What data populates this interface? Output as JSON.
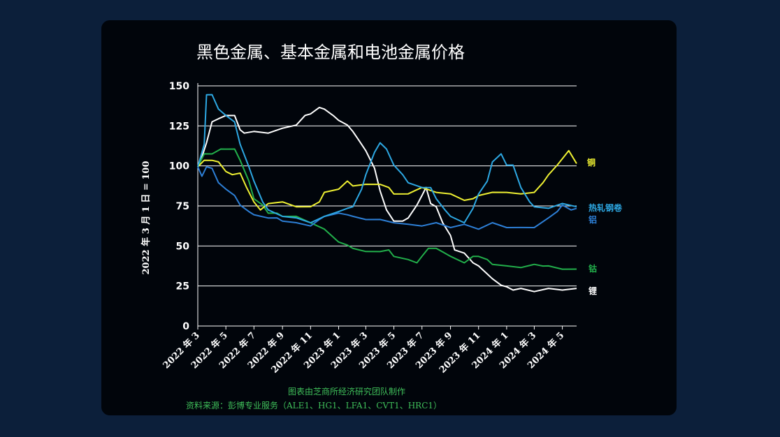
{
  "chart_data": {
    "type": "line",
    "title": "黑色金属、基本金属和电池金属价格",
    "ylabel": "2022 年 3 月 1 日 = 100",
    "ylim": [
      0,
      150
    ],
    "yticks": [
      0,
      25,
      50,
      75,
      100,
      125,
      150
    ],
    "x_range": [
      "2022-03",
      "2024-06"
    ],
    "xtick_labels": [
      "2022 年 3",
      "2022 年 5",
      "2022 年 7",
      "2022 年 9",
      "2022 年 11",
      "2023 年 1",
      "2023 年 3",
      "2023 年 5",
      "2023 年 7",
      "2023 年 9",
      "2023 年 11",
      "2024 年 1",
      "2024 年 3",
      "2024 年 5"
    ],
    "grid": "horizontal",
    "series": [
      {
        "name": "锂",
        "color": "#ffffff",
        "points": [
          [
            "2022-03",
            100
          ],
          [
            "2022-03-10",
            105
          ],
          [
            "2022-03-20",
            115
          ],
          [
            "2022-04",
            127
          ],
          [
            "2022-04-15",
            130
          ],
          [
            "2022-05",
            131
          ],
          [
            "2022-05-20",
            132
          ],
          [
            "2022-06",
            122
          ],
          [
            "2022-06-10",
            121
          ],
          [
            "2022-07",
            121
          ],
          [
            "2022-08",
            121
          ],
          [
            "2022-09",
            123
          ],
          [
            "2022-10",
            126
          ],
          [
            "2022-10-20",
            131
          ],
          [
            "2022-11",
            133
          ],
          [
            "2022-11-20",
            136
          ],
          [
            "2022-12",
            136
          ],
          [
            "2022-12-20",
            131
          ],
          [
            "2023-01",
            129
          ],
          [
            "2023-01-20",
            125
          ],
          [
            "2023-02",
            122
          ],
          [
            "2023-02-15",
            115
          ],
          [
            "2023-03",
            110
          ],
          [
            "2023-03-20",
            98
          ],
          [
            "2023-04",
            85
          ],
          [
            "2023-04-15",
            72
          ],
          [
            "2023-05",
            66
          ],
          [
            "2023-05-20",
            65
          ],
          [
            "2023-06",
            68
          ],
          [
            "2023-06-20",
            75
          ],
          [
            "2023-07",
            82
          ],
          [
            "2023-07-10",
            86
          ],
          [
            "2023-07-20",
            77
          ],
          [
            "2023-08",
            74
          ],
          [
            "2023-08-15",
            65
          ],
          [
            "2023-09",
            56
          ],
          [
            "2023-09-10",
            48
          ],
          [
            "2023-10",
            45
          ],
          [
            "2023-10-20",
            40
          ],
          [
            "2023-11",
            37
          ],
          [
            "2023-11-20",
            33
          ],
          [
            "2023-12",
            29
          ],
          [
            "2023-12-20",
            26
          ],
          [
            "2024-01",
            24
          ],
          [
            "2024-01-15",
            23
          ],
          [
            "2024-02",
            23
          ],
          [
            "2024-03",
            22
          ],
          [
            "2024-04",
            23
          ],
          [
            "2024-05",
            23
          ],
          [
            "2024-06",
            23
          ]
        ]
      },
      {
        "name": "钴",
        "color": "#22b04b",
        "points": [
          [
            "2022-03",
            100
          ],
          [
            "2022-03-15",
            107
          ],
          [
            "2022-04",
            108
          ],
          [
            "2022-04-20",
            110
          ],
          [
            "2022-05",
            111
          ],
          [
            "2022-05-20",
            110
          ],
          [
            "2022-06",
            104
          ],
          [
            "2022-06-20",
            90
          ],
          [
            "2022-07",
            80
          ],
          [
            "2022-07-20",
            75
          ],
          [
            "2022-08",
            71
          ],
          [
            "2022-08-20",
            70
          ],
          [
            "2022-09",
            69
          ],
          [
            "2022-10",
            68
          ],
          [
            "2022-11",
            65
          ],
          [
            "2022-12",
            60
          ],
          [
            "2023-01",
            53
          ],
          [
            "2023-01-20",
            50
          ],
          [
            "2023-02",
            49
          ],
          [
            "2023-03",
            46
          ],
          [
            "2023-04",
            47
          ],
          [
            "2023-04-20",
            47
          ],
          [
            "2023-05",
            44
          ],
          [
            "2023-06",
            41
          ],
          [
            "2023-06-20",
            40
          ],
          [
            "2023-07",
            43
          ],
          [
            "2023-07-15",
            49
          ],
          [
            "2023-08",
            48
          ],
          [
            "2023-08-20",
            46
          ],
          [
            "2023-09",
            43
          ],
          [
            "2023-10",
            40
          ],
          [
            "2023-10-20",
            43
          ],
          [
            "2023-11",
            44
          ],
          [
            "2023-11-20",
            41
          ],
          [
            "2023-12",
            39
          ],
          [
            "2024-01",
            37
          ],
          [
            "2024-02",
            37
          ],
          [
            "2024-03",
            38
          ],
          [
            "2024-03-20",
            38
          ],
          [
            "2024-04",
            37
          ],
          [
            "2024-05",
            36
          ],
          [
            "2024-06",
            35
          ]
        ]
      },
      {
        "name": "铜",
        "color": "#eef032",
        "points": [
          [
            "2022-03",
            100
          ],
          [
            "2022-03-15",
            103
          ],
          [
            "2022-04",
            104
          ],
          [
            "2022-04-15",
            102
          ],
          [
            "2022-05",
            97
          ],
          [
            "2022-05-15",
            94
          ],
          [
            "2022-06",
            96
          ],
          [
            "2022-06-15",
            86
          ],
          [
            "2022-07",
            78
          ],
          [
            "2022-07-15",
            72
          ],
          [
            "2022-08",
            77
          ],
          [
            "2022-09",
            77
          ],
          [
            "2022-10",
            75
          ],
          [
            "2022-11",
            74
          ],
          [
            "2022-11-20",
            78
          ],
          [
            "2022-12",
            83
          ],
          [
            "2023-01",
            86
          ],
          [
            "2023-01-20",
            90
          ],
          [
            "2023-02",
            88
          ],
          [
            "2023-03",
            88
          ],
          [
            "2023-04",
            89
          ],
          [
            "2023-04-20",
            86
          ],
          [
            "2023-05",
            83
          ],
          [
            "2023-06",
            82
          ],
          [
            "2023-06-15",
            85
          ],
          [
            "2023-07",
            86
          ],
          [
            "2023-08",
            84
          ],
          [
            "2023-09",
            82
          ],
          [
            "2023-10",
            79
          ],
          [
            "2023-10-20",
            79
          ],
          [
            "2023-11",
            82
          ],
          [
            "2023-12",
            83
          ],
          [
            "2024-01",
            84
          ],
          [
            "2024-02",
            82
          ],
          [
            "2024-03",
            84
          ],
          [
            "2024-03-20",
            89
          ],
          [
            "2024-04",
            95
          ],
          [
            "2024-04-20",
            100
          ],
          [
            "2024-05",
            105
          ],
          [
            "2024-05-15",
            109
          ],
          [
            "2024-06",
            102
          ]
        ]
      },
      {
        "name": "铝",
        "color": "#2d7fd6",
        "points": [
          [
            "2022-03",
            100
          ],
          [
            "2022-03-10",
            93
          ],
          [
            "2022-03-20",
            100
          ],
          [
            "2022-04",
            98
          ],
          [
            "2022-04-15",
            90
          ],
          [
            "2022-05",
            85
          ],
          [
            "2022-05-20",
            82
          ],
          [
            "2022-06",
            75
          ],
          [
            "2022-06-20",
            72
          ],
          [
            "2022-07",
            69
          ],
          [
            "2022-08",
            68
          ],
          [
            "2022-08-20",
            67
          ],
          [
            "2022-09",
            66
          ],
          [
            "2022-10",
            64
          ],
          [
            "2022-11",
            63
          ],
          [
            "2022-11-20",
            66
          ],
          [
            "2022-12",
            69
          ],
          [
            "2023-01",
            70
          ],
          [
            "2023-01-20",
            70
          ],
          [
            "2023-02",
            68
          ],
          [
            "2023-03",
            67
          ],
          [
            "2023-04",
            66
          ],
          [
            "2023-05",
            65
          ],
          [
            "2023-06",
            63
          ],
          [
            "2023-07",
            63
          ],
          [
            "2023-08",
            64
          ],
          [
            "2023-09",
            62
          ],
          [
            "2023-10",
            63
          ],
          [
            "2023-11",
            61
          ],
          [
            "2023-12",
            64
          ],
          [
            "2024-01",
            62
          ],
          [
            "2024-02",
            61
          ],
          [
            "2024-03",
            62
          ],
          [
            "2024-04",
            67
          ],
          [
            "2024-04-20",
            72
          ],
          [
            "2024-05",
            75
          ],
          [
            "2024-05-20",
            73
          ],
          [
            "2024-06",
            73
          ]
        ]
      },
      {
        "name": "热轧钢卷",
        "color": "#2da8e3",
        "points": [
          [
            "2022-03",
            100
          ],
          [
            "2022-03-15",
            113
          ],
          [
            "2022-03-20",
            145
          ],
          [
            "2022-04",
            144
          ],
          [
            "2022-04-15",
            136
          ],
          [
            "2022-05",
            131
          ],
          [
            "2022-05-20",
            128
          ],
          [
            "2022-06",
            113
          ],
          [
            "2022-06-20",
            100
          ],
          [
            "2022-07",
            90
          ],
          [
            "2022-07-20",
            78
          ],
          [
            "2022-08",
            72
          ],
          [
            "2022-09",
            69
          ],
          [
            "2022-10",
            67
          ],
          [
            "2022-11",
            65
          ],
          [
            "2022-12",
            68
          ],
          [
            "2023-01",
            72
          ],
          [
            "2023-01-20",
            73
          ],
          [
            "2023-02",
            75
          ],
          [
            "2023-02-20",
            85
          ],
          [
            "2023-03",
            95
          ],
          [
            "2023-03-20",
            108
          ],
          [
            "2023-04",
            115
          ],
          [
            "2023-04-15",
            110
          ],
          [
            "2023-05",
            101
          ],
          [
            "2023-05-20",
            94
          ],
          [
            "2023-06",
            90
          ],
          [
            "2023-07",
            86
          ],
          [
            "2023-07-20",
            87
          ],
          [
            "2023-08",
            79
          ],
          [
            "2023-08-20",
            73
          ],
          [
            "2023-09",
            68
          ],
          [
            "2023-10",
            65
          ],
          [
            "2023-10-20",
            73
          ],
          [
            "2023-11",
            83
          ],
          [
            "2023-11-20",
            90
          ],
          [
            "2023-12",
            103
          ],
          [
            "2023-12-20",
            107
          ],
          [
            "2024-01",
            101
          ],
          [
            "2024-01-15",
            100
          ],
          [
            "2024-02",
            87
          ],
          [
            "2024-02-20",
            77
          ],
          [
            "2024-03",
            75
          ],
          [
            "2024-04",
            73
          ],
          [
            "2024-04-20",
            76
          ],
          [
            "2024-05",
            76
          ],
          [
            "2024-06",
            75
          ]
        ]
      }
    ],
    "series_labels": [
      "铜",
      "热轧钢卷",
      "铝",
      "钴",
      "锂"
    ]
  },
  "footer": {
    "credit": "图表由芝商所经济研究团队制作",
    "source": "资料来源：彭博专业服务（ALE1、HG1、LFA1、CVT1、HRC1）"
  }
}
